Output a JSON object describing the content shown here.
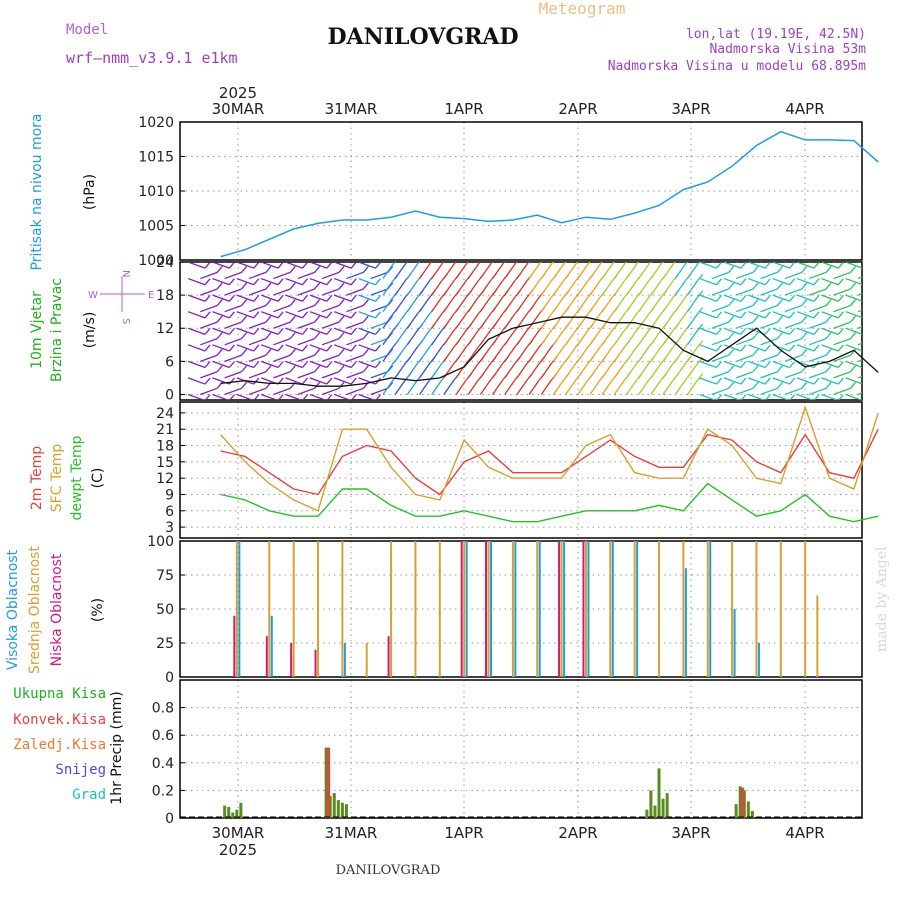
{
  "header": {
    "model_label": "Model",
    "model_name": "wrf–nmm_v3.9.1  e1km",
    "title": "DANILOVGRAD",
    "meteogram_label": "Meteogram",
    "coords": "lon,lat (19.19E, 42.5N)",
    "elevation": "Nadmorska Visina 53m",
    "model_elevation": "Nadmorska Visina u modelu 68.895m",
    "footer_title": "DANILOVGRAD",
    "credit": "made by Angel"
  },
  "time_axis": {
    "year": "2025",
    "days": [
      "30MAR",
      "31MAR",
      "1APR",
      "2APR",
      "3APR",
      "4APR"
    ]
  },
  "colors": {
    "pressure": "#1e9de0",
    "temp2m": "#e84040",
    "sfctemp": "#d8a030",
    "dewpt": "#2ac02a",
    "cloud_high": "#1e9de0",
    "cloud_mid": "#d8a030",
    "cloud_low": "#d01878",
    "precip_total": "#5a8a20",
    "precip_conv": "#e84040"
  },
  "chart_data": [
    {
      "type": "line",
      "name": "pressure",
      "ylabel_lines": [
        "Pritisak na nivou mora",
        "(hPa)"
      ],
      "ylim": [
        1000,
        1020
      ],
      "yticks": [
        1000,
        1005,
        1010,
        1015,
        1020
      ],
      "x": [
        0,
        6,
        12,
        18,
        24,
        30,
        36,
        42,
        48,
        54,
        60,
        66,
        72,
        78,
        84,
        90,
        96,
        102,
        108,
        114,
        120,
        126,
        132,
        138,
        144,
        150,
        156,
        162
      ],
      "values": [
        1000.5,
        1001.5,
        1003,
        1004.5,
        1005.3,
        1005.8,
        1005.8,
        1006.2,
        1007.1,
        1006.2,
        1006,
        1005.6,
        1005.8,
        1006.5,
        1005.4,
        1006.2,
        1005.9,
        1006.8,
        1007.9,
        1010.2,
        1011.3,
        1013.6,
        1016.6,
        1018.6,
        1017.4,
        1017.4,
        1017.3,
        1014.2
      ]
    },
    {
      "type": "line",
      "name": "wind",
      "ylabel_lines": [
        "10m Vjetar",
        "Brzina i Pravac",
        "(m/s)"
      ],
      "legend_letters": [
        "N",
        "S",
        "W",
        "E"
      ],
      "ylim": [
        -1,
        24
      ],
      "yticks": [
        0,
        6,
        12,
        18,
        24
      ],
      "x": [
        0,
        6,
        12,
        18,
        24,
        30,
        36,
        42,
        48,
        54,
        60,
        66,
        72,
        78,
        84,
        90,
        96,
        102,
        108,
        114,
        120,
        126,
        132,
        138,
        144,
        150,
        156,
        162
      ],
      "values": [
        2,
        2.5,
        2,
        2,
        1.5,
        1.5,
        2,
        3,
        2.5,
        3,
        5,
        10,
        12,
        13,
        14,
        14,
        13,
        13,
        12,
        8,
        6,
        9,
        12,
        8,
        5,
        6,
        8,
        4
      ]
    },
    {
      "type": "line",
      "name": "temperature",
      "ylabel_lines": [
        "2m Temp",
        "SFC Temp",
        "dewpt Temp",
        "(C)"
      ],
      "ylim": [
        1,
        26
      ],
      "yticks": [
        3,
        6,
        9,
        12,
        15,
        18,
        21,
        24
      ],
      "x": [
        0,
        6,
        12,
        18,
        24,
        30,
        36,
        42,
        48,
        54,
        60,
        66,
        72,
        78,
        84,
        90,
        96,
        102,
        108,
        114,
        120,
        126,
        132,
        138,
        144,
        150,
        156,
        162
      ],
      "series": [
        {
          "name": "2m Temp",
          "values": [
            17,
            16,
            13,
            10,
            9,
            16,
            18,
            17,
            12,
            9,
            15,
            17,
            13,
            13,
            13,
            16,
            19,
            16,
            14,
            14,
            20,
            19,
            15,
            13,
            20,
            13,
            12,
            21
          ]
        },
        {
          "name": "SFC Temp",
          "values": [
            20,
            15,
            11,
            8,
            6,
            21,
            21,
            14,
            9,
            8,
            19,
            14,
            12,
            12,
            12,
            18,
            20,
            13,
            12,
            12,
            21,
            18,
            12,
            11,
            25,
            12,
            10,
            24
          ]
        },
        {
          "name": "dewpt Temp",
          "values": [
            9,
            8,
            6,
            5,
            5,
            10,
            10,
            7,
            5,
            5,
            6,
            5,
            4,
            4,
            5,
            6,
            6,
            6,
            7,
            6,
            11,
            8,
            5,
            6,
            9,
            5,
            4,
            5
          ]
        }
      ]
    },
    {
      "type": "bar",
      "name": "clouds",
      "ylabel_lines": [
        "Visoka Oblacnost",
        "Srednja Oblacnost",
        "Niska Oblacnost",
        "(%)"
      ],
      "ylim": [
        0,
        100
      ],
      "yticks": [
        0,
        25,
        50,
        75,
        100
      ],
      "x": [
        4,
        12,
        18,
        24,
        30,
        36,
        42,
        48,
        54,
        60,
        66,
        72,
        78,
        84,
        90,
        96,
        102,
        108,
        114,
        120,
        126,
        132,
        138,
        144,
        147
      ],
      "series": [
        {
          "name": "Srednja Oblacnost",
          "values": [
            100,
            100,
            100,
            100,
            100,
            25,
            100,
            100,
            100,
            100,
            100,
            100,
            100,
            100,
            100,
            100,
            100,
            100,
            100,
            100,
            100,
            100,
            100,
            100,
            60
          ]
        },
        {
          "name": "Visoka Oblacnost",
          "values": [
            100,
            45,
            0,
            0,
            25,
            0,
            0,
            0,
            0,
            100,
            100,
            100,
            100,
            100,
            100,
            100,
            100,
            0,
            80,
            100,
            50,
            25,
            0,
            0,
            0
          ]
        },
        {
          "name": "Niska Oblacnost",
          "values": [
            45,
            30,
            25,
            20,
            0,
            0,
            30,
            0,
            0,
            100,
            100,
            0,
            0,
            100,
            100,
            0,
            0,
            0,
            0,
            0,
            0,
            0,
            0,
            0,
            0
          ]
        }
      ]
    },
    {
      "type": "bar",
      "name": "precip",
      "ylabel_lines": [
        "1hr Precip (mm)"
      ],
      "legend": [
        "Ukupna Kisa",
        "Konvek.Kisa",
        "Zaledj.Kisa",
        "Snijeg",
        "Grad"
      ],
      "ylim": [
        0,
        1.0
      ],
      "yticks": [
        0,
        0.2,
        0.4,
        0.6,
        0.8
      ],
      "x": [
        1,
        2,
        3,
        4,
        5,
        26,
        27,
        28,
        29,
        30,
        31,
        105,
        106,
        107,
        108,
        109,
        110,
        127,
        128,
        129,
        130,
        131
      ],
      "series": [
        {
          "name": "Ukupna Kisa",
          "values": [
            0.09,
            0.08,
            0.04,
            0.06,
            0.11,
            0.51,
            0.16,
            0.18,
            0.13,
            0.11,
            0.1,
            0.06,
            0.2,
            0.09,
            0.36,
            0.14,
            0.18,
            0.1,
            0.23,
            0.2,
            0.12,
            0.05
          ]
        },
        {
          "name": "Konvek.Kisa",
          "values": [
            0,
            0,
            0,
            0,
            0,
            0.51,
            0,
            0,
            0,
            0,
            0,
            0,
            0,
            0,
            0,
            0,
            0,
            0,
            0.22,
            0,
            0,
            0
          ]
        }
      ]
    }
  ]
}
